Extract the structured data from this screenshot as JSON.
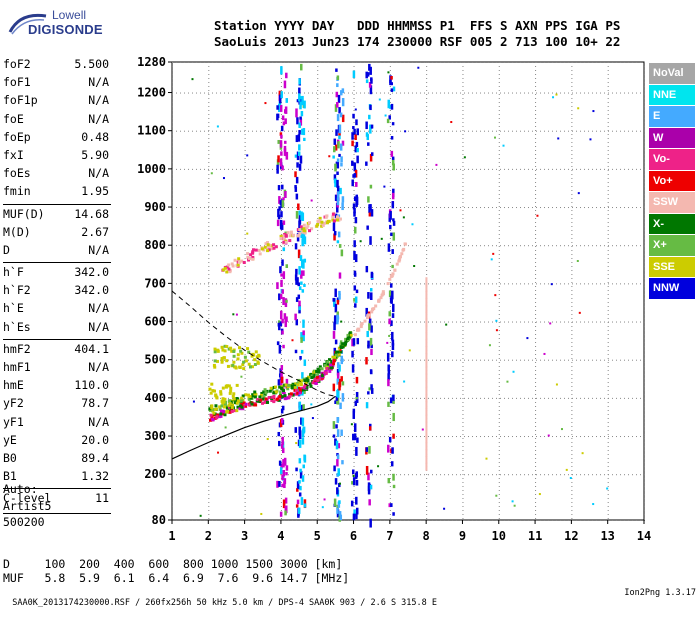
{
  "logo": {
    "line1": "Lowell",
    "line2": "DIGISONDE"
  },
  "header": {
    "line1": "Station YYYY DAY   DDD HHMMSS P1  FFS S AXN PPS IGA PS",
    "line2": "SaoLuis 2013 Jun23 174 230000 RSF 005 2 713 100 10+ 22"
  },
  "params": [
    {
      "name": "foF2",
      "value": "5.500"
    },
    {
      "name": "foF1",
      "value": "N/A"
    },
    {
      "name": "foF1p",
      "value": "N/A"
    },
    {
      "name": "foE",
      "value": "N/A"
    },
    {
      "name": "foEp",
      "value": "0.48"
    },
    {
      "name": "fxI",
      "value": "5.90"
    },
    {
      "name": "foEs",
      "value": "N/A"
    },
    {
      "name": "fmin",
      "value": "1.95"
    },
    {
      "name": "MUF(D)",
      "value": "14.68"
    },
    {
      "name": "M(D)",
      "value": "2.67"
    },
    {
      "name": "D",
      "value": "N/A"
    },
    {
      "name": "h`F",
      "value": "342.0"
    },
    {
      "name": "h`F2",
      "value": "342.0"
    },
    {
      "name": "h`E",
      "value": "N/A"
    },
    {
      "name": "h`Es",
      "value": "N/A"
    },
    {
      "name": "hmF2",
      "value": "404.1"
    },
    {
      "name": "hmF1",
      "value": "N/A"
    },
    {
      "name": "hmE",
      "value": "110.0"
    },
    {
      "name": "yF2",
      "value": "78.7"
    },
    {
      "name": "yF1",
      "value": "N/A"
    },
    {
      "name": "yE",
      "value": "20.0"
    },
    {
      "name": "B0",
      "value": "89.4"
    },
    {
      "name": "B1",
      "value": "1.32"
    },
    {
      "name": "C-level",
      "value": "11"
    }
  ],
  "auto": {
    "line1": "Auto:",
    "line2": "Artist5",
    "line3": "500200"
  },
  "legend": [
    {
      "label": "NoVal",
      "color": "#a6a6a6"
    },
    {
      "label": "NNE",
      "color": "#00e5ee"
    },
    {
      "label": "E",
      "color": "#44aaff"
    },
    {
      "label": "W",
      "color": "#aa00aa"
    },
    {
      "label": "Vo-",
      "color": "#ee2288"
    },
    {
      "label": "Vo+",
      "color": "#ee0000"
    },
    {
      "label": "SSW",
      "color": "#f4b8b0"
    },
    {
      "label": "X-",
      "color": "#007700"
    },
    {
      "label": "X+",
      "color": "#66bb44"
    },
    {
      "label": "SSE",
      "color": "#cccc00"
    },
    {
      "label": "NNW",
      "color": "#0000dd"
    }
  ],
  "bottom": {
    "line1": "D     100  200  400  600  800 1000 1500 3000 [km]",
    "line2": "MUF   5.8  5.9  6.1  6.4  6.9  7.6  9.6 14.7 [MHz]"
  },
  "footer": {
    "left": "SAA0K_2013174230000.RSF / 260fx256h 50 kHz 5.0 km / DPS-4 SAA0K 903 / 2.6 S 315.8 E",
    "right": "Ion2Png 1.3.17"
  },
  "chart_data": {
    "type": "scatter",
    "xlim": [
      1,
      14
    ],
    "ylim": [
      80,
      1280
    ],
    "xticks": [
      1,
      2,
      3,
      4,
      5,
      6,
      7,
      8,
      9,
      10,
      11,
      12,
      13,
      14
    ],
    "yticks": [
      80,
      200,
      300,
      400,
      500,
      600,
      700,
      800,
      900,
      1000,
      1100,
      1200,
      1280
    ],
    "grid": true,
    "xlabel": "",
    "ylabel": "",
    "profile_curve": [
      [
        1,
        240
      ],
      [
        1.5,
        262
      ],
      [
        2,
        283
      ],
      [
        2.5,
        303
      ],
      [
        3,
        322
      ],
      [
        3.5,
        338
      ],
      [
        4,
        352
      ],
      [
        4.5,
        365
      ],
      [
        5,
        378
      ],
      [
        5.3,
        390
      ],
      [
        5.5,
        404
      ]
    ],
    "profile_dashed": [
      [
        1,
        680
      ],
      [
        1.5,
        640
      ],
      [
        2,
        598
      ],
      [
        2.5,
        560
      ],
      [
        3,
        525
      ],
      [
        3.5,
        495
      ],
      [
        4,
        468
      ],
      [
        4.5,
        445
      ],
      [
        5,
        420
      ],
      [
        5.3,
        408
      ],
      [
        5.5,
        404
      ]
    ],
    "o_trace": [
      [
        2.0,
        350
      ],
      [
        2.3,
        362
      ],
      [
        2.6,
        375
      ],
      [
        3.0,
        385
      ],
      [
        3.4,
        395
      ],
      [
        3.8,
        402
      ],
      [
        4.2,
        412
      ],
      [
        4.6,
        428
      ],
      [
        4.9,
        445
      ],
      [
        5.1,
        462
      ],
      [
        5.3,
        480
      ],
      [
        5.45,
        500
      ]
    ],
    "x_trace": [
      [
        2.0,
        372
      ],
      [
        2.4,
        385
      ],
      [
        2.8,
        400
      ],
      [
        3.2,
        410
      ],
      [
        3.6,
        418
      ],
      [
        4.0,
        428
      ],
      [
        4.4,
        440
      ],
      [
        4.8,
        460
      ],
      [
        5.1,
        480
      ],
      [
        5.4,
        505
      ],
      [
        5.6,
        530
      ],
      [
        5.8,
        560
      ],
      [
        5.9,
        575
      ]
    ],
    "ssw_trace": [
      [
        2.3,
        725
      ],
      [
        2.8,
        760
      ],
      [
        3.4,
        790
      ],
      [
        3.9,
        815
      ],
      [
        4.3,
        830
      ],
      [
        4.7,
        850
      ],
      [
        5.2,
        870
      ],
      [
        5.6,
        880
      ],
      [
        6.0,
        570
      ],
      [
        6.3,
        610
      ],
      [
        6.6,
        650
      ],
      [
        6.9,
        700
      ],
      [
        7.2,
        760
      ],
      [
        7.4,
        810
      ]
    ],
    "vertical_bands": [
      {
        "x": 3.95,
        "color": "#0000dd"
      },
      {
        "x": 4.05,
        "color": "#cc00cc"
      },
      {
        "x": 4.45,
        "color": "#0000dd"
      },
      {
        "x": 4.55,
        "color": "#00ccff"
      },
      {
        "x": 5.5,
        "color": "#0000dd"
      },
      {
        "x": 5.6,
        "color": "#44aaff"
      },
      {
        "x": 6.0,
        "color": "#0000dd"
      },
      {
        "x": 6.4,
        "color": "#0000dd"
      },
      {
        "x": 7.0,
        "color": "#0000dd"
      }
    ]
  }
}
